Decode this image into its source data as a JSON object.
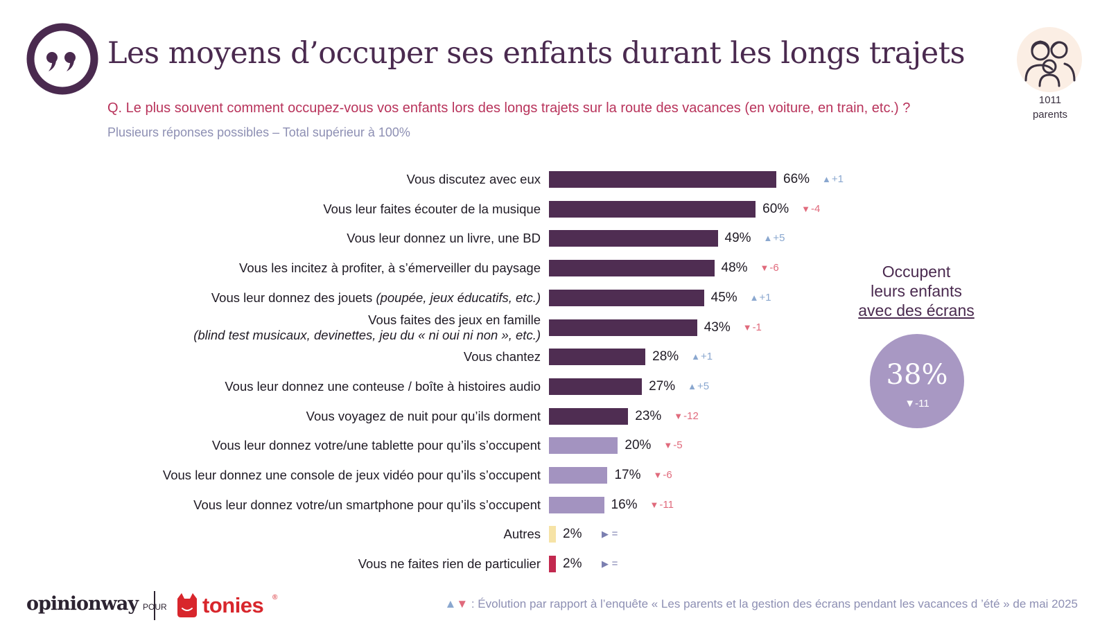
{
  "title": "Les moyens d’occuper ses enfants durant les longs trajets",
  "question": "Q. Le plus souvent comment occupez-vous vos enfants lors des longs trajets sur la route des vacances (en voiture, en train, etc.) ?",
  "note": "Plusieurs réponses possibles – Total supérieur à 100%",
  "sample": {
    "count": "1011",
    "label": "parents",
    "icon": "parents-icon"
  },
  "colors": {
    "dark": "#4f2d52",
    "screen": "#a393c0",
    "other": "#f6e3a6",
    "nothing": "#c2294f",
    "title": "#4a2a4f",
    "question": "#b8335b"
  },
  "chart_data": {
    "type": "bar",
    "orientation": "horizontal",
    "unit": "%",
    "xlim": [
      0,
      100
    ],
    "rows": [
      {
        "label": "Vous discutez avec eux",
        "label_note": "",
        "value": 66,
        "display": "66%",
        "evolution": "+1",
        "direction": "up",
        "group": "dark"
      },
      {
        "label": "Vous leur faites écouter de la musique",
        "label_note": "",
        "value": 60,
        "display": "60%",
        "evolution": "-4",
        "direction": "down",
        "group": "dark"
      },
      {
        "label": "Vous leur donnez un livre, une BD",
        "label_note": "",
        "value": 49,
        "display": "49%",
        "evolution": "+5",
        "direction": "up",
        "group": "dark"
      },
      {
        "label": "Vous les incitez à profiter, à s’émerveiller du paysage",
        "label_note": "",
        "value": 48,
        "display": "48%",
        "evolution": "-6",
        "direction": "down",
        "group": "dark"
      },
      {
        "label": "Vous leur donnez des jouets ",
        "label_note": "(poupée, jeux éducatifs, etc.)",
        "value": 45,
        "display": "45%",
        "evolution": "+1",
        "direction": "up",
        "group": "dark"
      },
      {
        "label": "Vous faites des jeux en famille",
        "label_note": "(blind test musicaux, devinettes, jeu du « ni oui ni non », etc.)",
        "value": 43,
        "display": "43%",
        "evolution": "-1",
        "direction": "down",
        "group": "dark"
      },
      {
        "label": "Vous chantez",
        "label_note": "",
        "value": 28,
        "display": "28%",
        "evolution": "+1",
        "direction": "up",
        "group": "dark"
      },
      {
        "label": "Vous leur donnez une conteuse / boîte à histoires audio",
        "label_note": "",
        "value": 27,
        "display": "27%",
        "evolution": "+5",
        "direction": "up",
        "group": "dark"
      },
      {
        "label": "Vous voyagez de nuit pour qu’ils dorment",
        "label_note": "",
        "value": 23,
        "display": "23%",
        "evolution": "-12",
        "direction": "down",
        "group": "dark"
      },
      {
        "label": "Vous leur donnez votre/une tablette pour qu’ils s’occupent",
        "label_note": "",
        "value": 20,
        "display": "20%",
        "evolution": "-5",
        "direction": "down",
        "group": "screen"
      },
      {
        "label": "Vous leur donnez une console de jeux vidéo pour qu’ils s’occupent",
        "label_note": "",
        "value": 17,
        "display": "17%",
        "evolution": "-6",
        "direction": "down",
        "group": "screen"
      },
      {
        "label": "Vous leur donnez votre/un smartphone pour qu’ils s’occupent",
        "label_note": "",
        "value": 16,
        "display": "16%",
        "evolution": "-11",
        "direction": "down",
        "group": "screen"
      },
      {
        "label": "Autres",
        "label_note": "",
        "value": 2,
        "display": "2%",
        "evolution": "=",
        "direction": "flat",
        "group": "other"
      },
      {
        "label": "Vous ne faites rien de particulier",
        "label_note": "",
        "value": 2,
        "display": "2%",
        "evolution": "=",
        "direction": "flat",
        "group": "nothing"
      }
    ]
  },
  "screens": {
    "title_line1": "Occupent",
    "title_line2": "leurs enfants",
    "title_line3": "avec des écrans",
    "value": "38%",
    "evolution": "-11"
  },
  "brand": {
    "opinionway": "opinionway",
    "pour": "POUR",
    "tonies": "tonies",
    "reg": "®"
  },
  "footnote": {
    "up_marker": "▲",
    "down_marker": "▼",
    "text": " : Évolution par rapport à l’enquête « Les parents et la gestion des écrans pendant les vacances d ’été » de mai 2025"
  }
}
